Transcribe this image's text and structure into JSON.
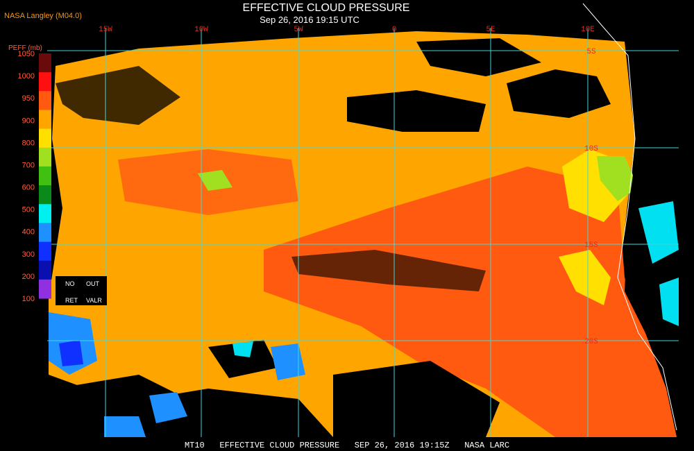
{
  "header": {
    "title": "EFFECTIVE CLOUD PRESSURE",
    "subtitle": "Sep 26, 2016 19:15 UTC",
    "source": "NASA Langley (M04.0)"
  },
  "longitude_labels": [
    "15W",
    "10W",
    "5W",
    "0",
    "5E",
    "10E"
  ],
  "latitude_labels": [
    "5S",
    "10S",
    "15S",
    "20S"
  ],
  "colorbar": {
    "title": "PEFF (mb)",
    "ticks": [
      1050,
      1000,
      950,
      900,
      800,
      700,
      600,
      500,
      400,
      300,
      200,
      100
    ],
    "band_colors": [
      "#6b0a0a",
      "#ff1010",
      "#ff5a10",
      "#ffa500",
      "#ffe000",
      "#a0e020",
      "#40c010",
      "#0a8a1a",
      "#00f0f0",
      "#1e90ff",
      "#1030ff",
      "#0a10b0",
      "#9030e0"
    ],
    "no_data_labels": [
      "NO",
      "OUT",
      "RET",
      "VALR"
    ]
  },
  "footer": {
    "caption": "MT10   EFFECTIVE CLOUD PRESSURE   SEP 26, 2016 19:15Z   NASA LARC"
  }
}
